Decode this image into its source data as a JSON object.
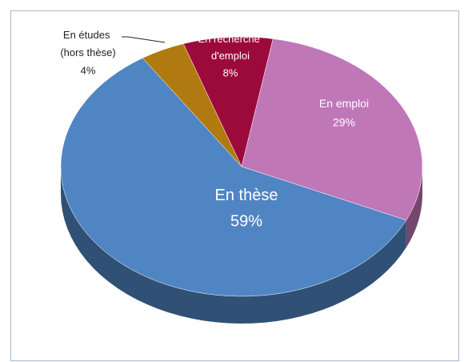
{
  "chart_data": {
    "type": "pie",
    "categories": [
      "En recherche d'emploi",
      "En emploi",
      "En thèse",
      "En études (hors thèse)"
    ],
    "values": [
      8,
      29,
      59,
      4
    ],
    "value_labels": [
      "8%",
      "29%",
      "59%",
      "4%"
    ],
    "colors": [
      "#9c0a3c",
      "#c077b8",
      "#5085c4",
      "#b07a10"
    ]
  }
}
